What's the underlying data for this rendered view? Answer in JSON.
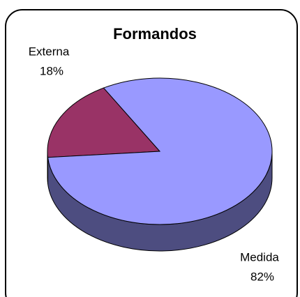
{
  "chart_data": {
    "type": "pie",
    "title": "Formandos",
    "categories": [
      "Externa",
      "Medida"
    ],
    "values": [
      18,
      82
    ],
    "value_labels": [
      "18%",
      "82%"
    ],
    "colors": [
      "#993366",
      "#9999ff"
    ],
    "side_colors": [
      "#4d1a33",
      "#4d4d80"
    ]
  }
}
